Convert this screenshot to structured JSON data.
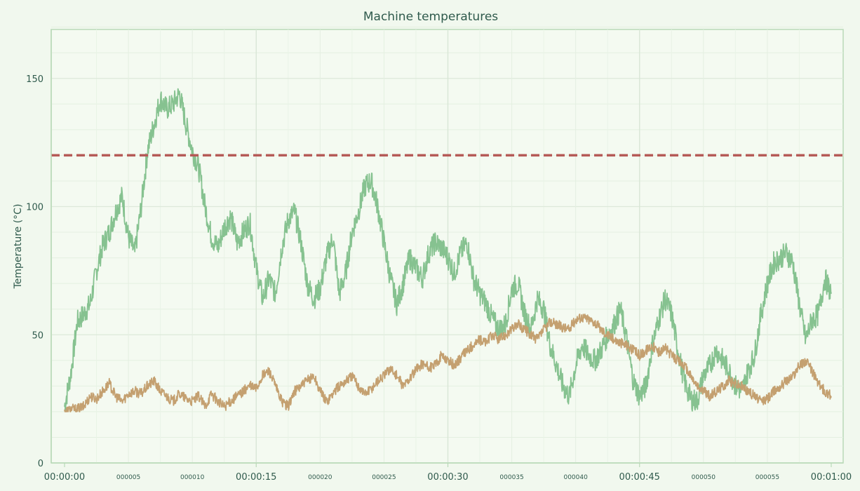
{
  "chart_data": {
    "type": "line",
    "title": "Machine temperatures",
    "xlabel": "",
    "ylabel": "Temperature (°C)",
    "xlim": [
      "00:00:00",
      "00:01:00"
    ],
    "ylim": [
      0,
      170
    ],
    "grid": true,
    "legend": "none",
    "x_ticks_major": [
      "00:00:00",
      "00:00:15",
      "00:00:30",
      "00:00:45",
      "00:01:00"
    ],
    "x_ticks_minor": [
      "000005",
      "000010",
      "000020",
      "000025",
      "000035",
      "000040",
      "000050",
      "000055"
    ],
    "y_ticks": [
      0,
      50,
      100,
      150
    ],
    "threshold": {
      "value": 120,
      "color": "#b55a57",
      "style": "dashed"
    },
    "series": [
      {
        "color": "#86c290",
        "x": [
          0,
          0.5,
          1,
          1.5,
          2,
          2.5,
          3,
          3.5,
          4,
          4.5,
          5,
          5.5,
          6,
          6.5,
          7,
          7.5,
          8,
          8.5,
          9,
          9.5,
          10,
          10.5,
          11,
          11.5,
          12,
          12.5,
          13,
          13.5,
          14,
          14.5,
          15,
          15.5,
          16,
          16.5,
          17,
          17.5,
          18,
          18.5,
          19,
          19.5,
          20,
          20.5,
          21,
          21.5,
          22,
          22.5,
          23,
          23.5,
          24,
          24.5,
          25,
          25.5,
          26,
          26.5,
          27,
          27.5,
          28,
          28.5,
          29,
          29.5,
          30,
          30.5,
          31,
          31.5,
          32,
          32.5,
          33,
          33.5,
          34,
          34.5,
          35,
          35.5,
          36,
          36.5,
          37,
          37.5,
          38,
          38.5,
          39,
          39.5,
          40,
          40.5,
          41,
          41.5,
          42,
          42.5,
          43,
          43.5,
          44,
          44.5,
          45,
          45.5,
          46,
          46.5,
          47,
          47.5,
          48,
          48.5,
          49,
          49.5,
          50,
          50.5,
          51,
          51.5,
          52,
          52.5,
          53,
          53.5,
          54,
          54.5,
          55,
          55.5,
          56,
          56.5,
          57,
          57.5,
          58,
          58.5,
          59,
          59.5,
          60
        ],
        "values": [
          22,
          35,
          55,
          58,
          62,
          75,
          85,
          90,
          98,
          104,
          88,
          82,
          100,
          122,
          132,
          142,
          138,
          140,
          144,
          132,
          122,
          115,
          100,
          88,
          84,
          92,
          96,
          86,
          90,
          94,
          76,
          64,
          72,
          66,
          84,
          95,
          98,
          86,
          70,
          64,
          68,
          80,
          88,
          66,
          74,
          90,
          98,
          108,
          110,
          100,
          86,
          72,
          62,
          70,
          80,
          76,
          72,
          82,
          86,
          84,
          80,
          74,
          82,
          86,
          72,
          66,
          62,
          56,
          52,
          54,
          68,
          70,
          58,
          52,
          64,
          60,
          46,
          38,
          30,
          26,
          38,
          46,
          42,
          40,
          44,
          50,
          54,
          60,
          48,
          32,
          26,
          30,
          46,
          56,
          64,
          58,
          44,
          32,
          25,
          24,
          34,
          38,
          44,
          40,
          36,
          30,
          28,
          36,
          42,
          58,
          70,
          78,
          80,
          82,
          78,
          62,
          48,
          56,
          58,
          72,
          66
        ]
      },
      {
        "color": "#c4a070",
        "x": [
          0,
          0.5,
          1,
          1.5,
          2,
          2.5,
          3,
          3.5,
          4,
          4.5,
          5,
          5.5,
          6,
          6.5,
          7,
          7.5,
          8,
          8.5,
          9,
          9.5,
          10,
          10.5,
          11,
          11.5,
          12,
          12.5,
          13,
          13.5,
          14,
          14.5,
          15,
          15.5,
          16,
          16.5,
          17,
          17.5,
          18,
          18.5,
          19,
          19.5,
          20,
          20.5,
          21,
          21.5,
          22,
          22.5,
          23,
          23.5,
          24,
          24.5,
          25,
          25.5,
          26,
          26.5,
          27,
          27.5,
          28,
          28.5,
          29,
          29.5,
          30,
          30.5,
          31,
          31.5,
          32,
          32.5,
          33,
          33.5,
          34,
          34.5,
          35,
          35.5,
          36,
          36.5,
          37,
          37.5,
          38,
          38.5,
          39,
          39.5,
          40,
          40.5,
          41,
          41.5,
          42,
          42.5,
          43,
          43.5,
          44,
          44.5,
          45,
          45.5,
          46,
          46.5,
          47,
          47.5,
          48,
          48.5,
          49,
          49.5,
          50,
          50.5,
          51,
          51.5,
          52,
          52.5,
          53,
          53.5,
          54,
          54.5,
          55,
          55.5,
          56,
          56.5,
          57,
          57.5,
          58,
          58.5,
          59,
          59.5,
          60
        ],
        "values": [
          20,
          21,
          21,
          22,
          26,
          25,
          28,
          31,
          26,
          24,
          27,
          28,
          27,
          30,
          32,
          28,
          26,
          24,
          27,
          25,
          24,
          26,
          22,
          27,
          24,
          22,
          24,
          26,
          28,
          30,
          29,
          34,
          36,
          30,
          24,
          22,
          28,
          30,
          32,
          34,
          28,
          24,
          27,
          30,
          32,
          34,
          30,
          27,
          29,
          32,
          34,
          37,
          34,
          30,
          33,
          36,
          39,
          37,
          38,
          42,
          40,
          38,
          41,
          44,
          46,
          48,
          47,
          50,
          48,
          50,
          52,
          54,
          52,
          50,
          48,
          52,
          55,
          54,
          53,
          52,
          56,
          57,
          56,
          55,
          52,
          50,
          48,
          47,
          46,
          44,
          42,
          44,
          46,
          43,
          45,
          42,
          40,
          38,
          34,
          30,
          28,
          26,
          28,
          30,
          32,
          31,
          30,
          28,
          26,
          24,
          25,
          28,
          30,
          32,
          34,
          38,
          40,
          36,
          31,
          28,
          26
        ]
      }
    ]
  }
}
